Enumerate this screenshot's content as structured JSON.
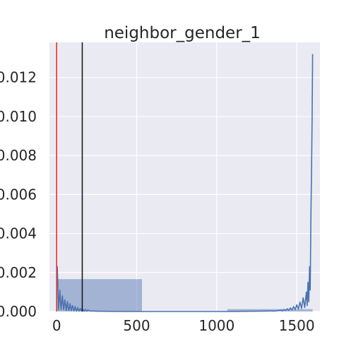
{
  "chart_data": {
    "type": "histogram_kde",
    "title": "neighbor_gender_1",
    "xlabel": "",
    "ylabel": "",
    "xlim": [
      -45,
      1645
    ],
    "ylim": [
      0,
      0.0138
    ],
    "x_ticks": [
      0,
      500,
      1000,
      1500
    ],
    "x_tick_labels": [
      "0",
      "500",
      "1000",
      "1500"
    ],
    "y_ticks": [
      0.0,
      0.002,
      0.004,
      0.006,
      0.008,
      0.01,
      0.012
    ],
    "y_tick_labels": [
      "0.000",
      "0.002",
      "0.004",
      "0.006",
      "0.008",
      "0.010",
      "0.012"
    ],
    "grid": true,
    "histogram": {
      "color": "#4c72b0",
      "bins": [
        {
          "x0": 0,
          "x1": 533,
          "value": 0.00166
        },
        {
          "x0": 533,
          "x1": 1066,
          "value": 0.0
        },
        {
          "x0": 1066,
          "x1": 1599,
          "value": 0.00012
        }
      ]
    },
    "kde": {
      "color": "#4c72b0",
      "x": [
        0,
        4,
        8,
        12,
        16,
        20,
        24,
        28,
        32,
        36,
        40,
        44,
        48,
        52,
        56,
        60,
        64,
        68,
        72,
        76,
        80,
        84,
        88,
        92,
        96,
        100,
        104,
        108,
        112,
        116,
        120,
        124,
        128,
        132,
        136,
        140,
        144,
        148,
        152,
        156,
        160,
        164,
        168,
        172,
        176,
        180,
        184,
        188,
        192,
        196,
        200,
        210,
        220,
        230,
        240,
        250,
        260,
        280,
        300,
        400,
        500,
        600,
        700,
        800,
        900,
        1000,
        1100,
        1200,
        1300,
        1340,
        1360,
        1380,
        1400,
        1410,
        1420,
        1430,
        1440,
        1450,
        1460,
        1470,
        1480,
        1490,
        1500,
        1510,
        1520,
        1530,
        1540,
        1550,
        1560,
        1565,
        1570,
        1575,
        1580,
        1584,
        1588,
        1592,
        1596,
        1599
      ],
      "y": [
        0.0013,
        0.0023,
        0.0012,
        0.0001,
        0.0006,
        0.0011,
        0.0005,
        0.0001,
        0.0005,
        0.0008,
        0.0004,
        0.0001,
        0.0004,
        0.0006,
        0.0003,
        5e-05,
        0.0003,
        0.0005,
        0.0002,
        5e-05,
        0.0002,
        0.0004,
        0.0002,
        4e-05,
        0.0002,
        0.0003,
        0.00015,
        3e-05,
        0.00015,
        0.00025,
        0.0001,
        2e-05,
        0.0001,
        0.0002,
        0.0001,
        2e-05,
        0.0001,
        0.00015,
        8e-05,
        2e-05,
        8e-05,
        0.00012,
        6e-05,
        1e-05,
        6e-05,
        0.0001,
        5e-05,
        1e-05,
        5e-05,
        8e-05,
        4e-05,
        3e-05,
        2e-05,
        3e-05,
        2e-05,
        1e-05,
        2e-05,
        1e-05,
        1e-05,
        0.0,
        0.0,
        0.0,
        0.0,
        0.0,
        0.0,
        0.0,
        0.0,
        1e-05,
        2e-05,
        3e-05,
        2e-05,
        5e-05,
        8e-05,
        3e-05,
        0.0001,
        5e-05,
        0.00014,
        6e-05,
        0.00018,
        8e-05,
        0.00025,
        0.0001,
        0.00034,
        0.00012,
        0.00048,
        0.00015,
        0.0007,
        0.0002,
        0.001,
        0.0003,
        0.0015,
        0.0005,
        0.0023,
        0.0011,
        0.0046,
        0.007,
        0.01,
        0.0132
      ]
    },
    "vlines": [
      {
        "x": 0,
        "color": "#e8322b"
      },
      {
        "x": 160,
        "color": "#1a1a1a"
      }
    ]
  }
}
